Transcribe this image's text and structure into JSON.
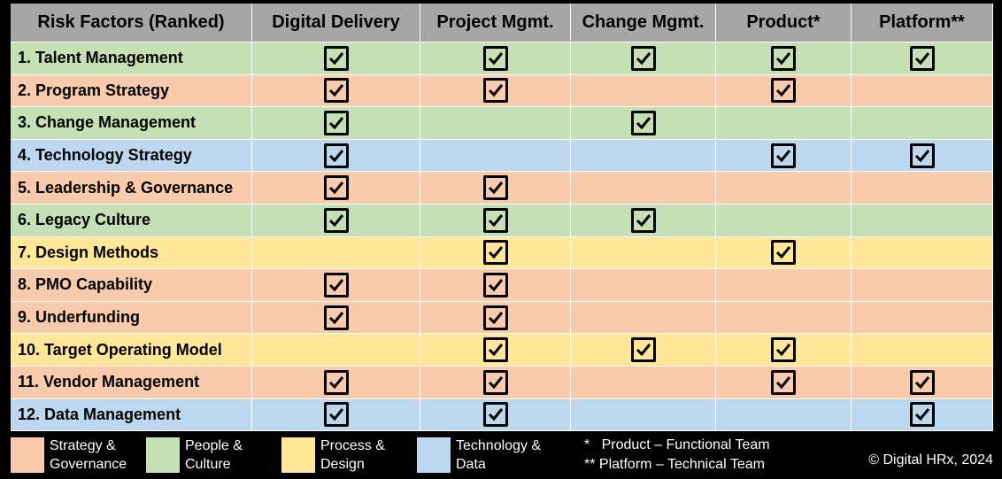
{
  "columns": [
    "Risk Factors (Ranked)",
    "Digital Delivery",
    "Project Mgmt.",
    "Change Mgmt.",
    "Product*",
    "Platform**"
  ],
  "rows": [
    {
      "label": "1. Talent Management",
      "category": "people",
      "checks": [
        true,
        true,
        true,
        true,
        true
      ]
    },
    {
      "label": "2. Program Strategy",
      "category": "strategy",
      "checks": [
        true,
        true,
        false,
        true,
        false
      ]
    },
    {
      "label": "3. Change Management",
      "category": "people",
      "checks": [
        true,
        false,
        true,
        false,
        false
      ]
    },
    {
      "label": "4. Technology Strategy",
      "category": "tech",
      "checks": [
        true,
        false,
        false,
        true,
        true
      ]
    },
    {
      "label": "5. Leadership & Governance",
      "category": "strategy",
      "checks": [
        true,
        true,
        false,
        false,
        false
      ]
    },
    {
      "label": "6. Legacy Culture",
      "category": "people",
      "checks": [
        true,
        true,
        true,
        false,
        false
      ]
    },
    {
      "label": "7. Design Methods",
      "category": "process",
      "checks": [
        false,
        true,
        false,
        true,
        false
      ]
    },
    {
      "label": "8. PMO Capability",
      "category": "strategy",
      "checks": [
        true,
        true,
        false,
        false,
        false
      ]
    },
    {
      "label": "9. Underfunding",
      "category": "strategy",
      "checks": [
        true,
        true,
        false,
        false,
        false
      ]
    },
    {
      "label": "10. Target Operating Model",
      "category": "process",
      "checks": [
        false,
        true,
        true,
        true,
        false
      ]
    },
    {
      "label": "11. Vendor Management",
      "category": "strategy",
      "checks": [
        true,
        true,
        false,
        true,
        true
      ]
    },
    {
      "label": "12. Data Management",
      "category": "tech",
      "checks": [
        true,
        true,
        false,
        false,
        true
      ]
    }
  ],
  "legend": [
    {
      "key": "strategy",
      "label": "Strategy &\nGovernance",
      "color": "#f8cbad"
    },
    {
      "key": "people",
      "label": "People &\nCulture",
      "color": "#c5e0b4"
    },
    {
      "key": "process",
      "label": "Process &\nDesign",
      "color": "#ffe699"
    },
    {
      "key": "tech",
      "label": "Technology &\nData",
      "color": "#bdd7ee"
    }
  ],
  "notes": {
    "product": "*   Product – Functional Team",
    "platform": "** Platform – Technical Team"
  },
  "copyright": "© Digital HRx, 2024",
  "colors": {
    "header_bg": "#a6a6a6",
    "background": "#000000"
  }
}
